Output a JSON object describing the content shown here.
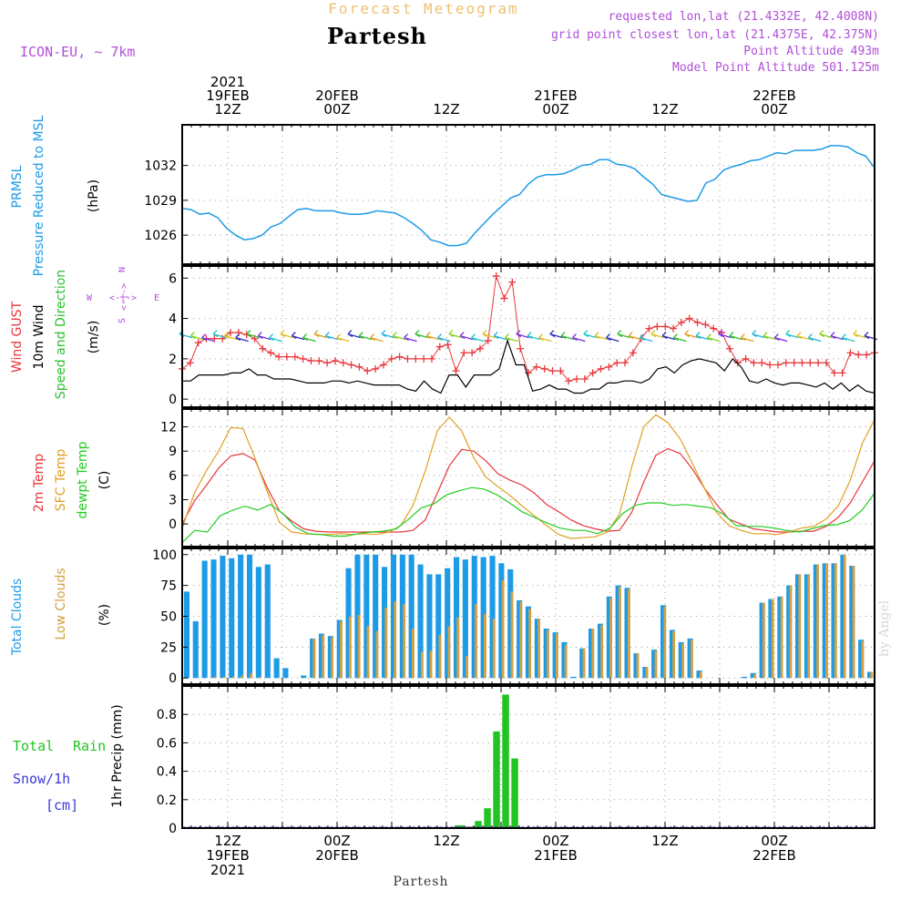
{
  "header": {
    "subtitle": "Forecast Meteogram",
    "title": "Partesh",
    "model": "ICON-EU, ~ 7km",
    "requested": "requested lon,lat (21.4332E, 42.4008N)",
    "closest": "grid point closest lon,lat (21.4375E, 42.375N)",
    "point_alt": "Point Altitude 493m",
    "model_alt": "Model Point Altitude 501.125m",
    "footer_name": "Partesh",
    "watermark": "by Angel"
  },
  "colors": {
    "pressure": "#1e9be6",
    "gust": "#e8373c",
    "wind": "#000000",
    "dirlabel": "#2fbf2f",
    "temp": "#e8373c",
    "sfc": "#e0a020",
    "dew": "#22cc22",
    "total_clouds": "#1e9be6",
    "low_clouds": "#d4a040",
    "rain": "#22c422",
    "snow": "#3a3ad8",
    "purple": "#b04fd8",
    "orange_title": "#f0c070"
  },
  "time_axis": {
    "top_labels": [
      {
        "h": 12,
        "lines": [
          "2021",
          "19FEB",
          "12Z"
        ]
      },
      {
        "h": 24,
        "lines": [
          "20FEB",
          "00Z"
        ]
      },
      {
        "h": 36,
        "lines": [
          "12Z"
        ]
      },
      {
        "h": 48,
        "lines": [
          "21FEB",
          "00Z"
        ]
      },
      {
        "h": 60,
        "lines": [
          "12Z"
        ]
      },
      {
        "h": 72,
        "lines": [
          "22FEB",
          "00Z"
        ]
      }
    ],
    "bottom_labels": [
      {
        "h": 12,
        "lines": [
          "12Z",
          "19FEB",
          "2021"
        ]
      },
      {
        "h": 24,
        "lines": [
          "00Z",
          "20FEB"
        ]
      },
      {
        "h": 36,
        "lines": [
          "12Z"
        ]
      },
      {
        "h": 48,
        "lines": [
          "00Z",
          "21FEB"
        ]
      },
      {
        "h": 60,
        "lines": [
          "12Z"
        ]
      },
      {
        "h": 72,
        "lines": [
          "00Z",
          "22FEB"
        ]
      }
    ],
    "start_hour": 7,
    "end_hour": 83
  },
  "panel_labels": {
    "pressure": [
      "PRMSL",
      "Pressure Reduced to MSL",
      "(hPa)"
    ],
    "wind": [
      "Wind GUST",
      "10m Wind",
      "Speed and Direction",
      "(m/s)"
    ],
    "compass": {
      "n": "N",
      "s": "S",
      "w": "W",
      "e": "E",
      "arrow": "<-|->"
    },
    "temp": [
      "2m Temp",
      "SFC Temp",
      "dewpt Temp",
      "(C)"
    ],
    "clouds": [
      "Total Clouds",
      "Low Clouds",
      "(%)"
    ],
    "precip": [
      "Total",
      "Rain",
      "Snow/1h",
      "[cm]",
      "1hr Precip (mm)"
    ]
  },
  "chart_data": [
    {
      "type": "line",
      "title": "PRMSL Pressure Reduced to MSL",
      "ylabel": "(hPa)",
      "ylim": [
        1023.5,
        1035.5
      ],
      "yticks": [
        1026,
        1029,
        1032
      ],
      "series": [
        {
          "name": "PRMSL",
          "values": [
            1028.3,
            1028.2,
            1027.8,
            1027.9,
            1027.5,
            1026.6,
            1026.0,
            1025.6,
            1025.7,
            1026.0,
            1026.7,
            1027.0,
            1027.6,
            1028.2,
            1028.3,
            1028.1,
            1028.1,
            1028.1,
            1027.9,
            1027.8,
            1027.8,
            1027.9,
            1028.1,
            1028.0,
            1027.9,
            1027.5,
            1027.0,
            1026.4,
            1025.6,
            1025.4,
            1025.1,
            1025.1,
            1025.3,
            1026.2,
            1027.0,
            1027.8,
            1028.5,
            1029.2,
            1029.5,
            1030.4,
            1031.0,
            1031.2,
            1031.2,
            1031.3,
            1031.6,
            1032.0,
            1032.1,
            1032.5,
            1032.5,
            1032.1,
            1032.0,
            1031.7,
            1031.0,
            1030.4,
            1029.5,
            1029.3,
            1029.1,
            1028.9,
            1029.0,
            1030.5,
            1030.8,
            1031.6,
            1031.9,
            1032.1,
            1032.4,
            1032.5,
            1032.8,
            1033.1,
            1033.0,
            1033.3,
            1033.3,
            1033.3,
            1033.4,
            1033.7,
            1033.7,
            1033.6,
            1033.1,
            1032.8,
            1031.8
          ]
        }
      ]
    },
    {
      "type": "line",
      "title": "Wind GUST / 10m Wind Speed and Direction",
      "ylabel": "(m/s)",
      "ylim": [
        -0.4,
        6.6
      ],
      "yticks": [
        0,
        2,
        4,
        6
      ],
      "series": [
        {
          "name": "Wind GUST",
          "values": [
            1.5,
            1.8,
            2.8,
            3.0,
            3.0,
            3.0,
            3.3,
            3.3,
            3.2,
            3.0,
            2.5,
            2.3,
            2.1,
            2.1,
            2.1,
            2.0,
            1.9,
            1.9,
            1.8,
            1.9,
            1.8,
            1.7,
            1.6,
            1.4,
            1.5,
            1.7,
            2.0,
            2.1,
            2.0,
            2.0,
            2.0,
            2.0,
            2.6,
            2.7,
            1.4,
            2.3,
            2.3,
            2.5,
            2.9,
            6.1,
            5.0,
            5.8,
            2.5,
            1.3,
            1.6,
            1.5,
            1.4,
            1.4,
            0.9,
            1.0,
            1.0,
            1.3,
            1.5,
            1.6,
            1.8,
            1.8,
            2.3,
            3.0,
            3.5,
            3.6,
            3.6,
            3.5,
            3.8,
            4.0,
            3.8,
            3.7,
            3.5,
            3.3,
            2.5,
            1.8,
            2.0,
            1.8,
            1.8,
            1.7,
            1.7,
            1.8,
            1.8,
            1.8,
            1.8,
            1.8,
            1.8,
            1.3,
            1.3,
            2.3,
            2.2,
            2.2,
            2.3
          ]
        },
        {
          "name": "10m Wind",
          "values": [
            0.9,
            0.9,
            1.2,
            1.2,
            1.2,
            1.2,
            1.3,
            1.3,
            1.5,
            1.2,
            1.2,
            1.0,
            1.0,
            1.0,
            0.9,
            0.8,
            0.8,
            0.8,
            0.9,
            0.9,
            0.8,
            0.9,
            0.8,
            0.7,
            0.7,
            0.7,
            0.7,
            0.5,
            0.4,
            0.9,
            0.5,
            0.3,
            1.2,
            1.2,
            0.6,
            1.2,
            1.2,
            1.2,
            1.5,
            2.9,
            1.7,
            1.7,
            0.4,
            0.5,
            0.7,
            0.5,
            0.5,
            0.3,
            0.3,
            0.5,
            0.5,
            0.8,
            0.8,
            0.9,
            0.9,
            0.8,
            1.0,
            1.5,
            1.6,
            1.3,
            1.7,
            1.9,
            2.0,
            1.9,
            1.8,
            1.4,
            2.0,
            1.6,
            0.9,
            0.8,
            1.0,
            0.8,
            0.7,
            0.8,
            0.8,
            0.7,
            0.6,
            0.8,
            0.5,
            0.8,
            0.4,
            0.7,
            0.4,
            0.3
          ]
        }
      ]
    },
    {
      "type": "line",
      "title": "2m Temp / SFC Temp / dewpt Temp",
      "ylabel": "(C)",
      "ylim": [
        -2.8,
        14.2
      ],
      "yticks": [
        0,
        3,
        6,
        9,
        12
      ],
      "series": [
        {
          "name": "2m Temp",
          "values": [
            0.0,
            2.8,
            4.8,
            6.9,
            8.4,
            8.7,
            7.9,
            4.5,
            1.6,
            0.4,
            -0.6,
            -0.9,
            -1.0,
            -1.0,
            -1.0,
            -1.0,
            -1.0,
            -1.0,
            -1.0,
            -0.8,
            0.5,
            3.8,
            7.2,
            9.2,
            9.0,
            7.8,
            6.2,
            5.4,
            4.8,
            3.8,
            2.4,
            1.5,
            0.5,
            -0.2,
            -0.6,
            -0.9,
            -0.8,
            1.4,
            5.2,
            8.5,
            9.3,
            8.7,
            6.8,
            4.4,
            2.4,
            0.6,
            0.0,
            -0.6,
            -0.8,
            -1.0,
            -1.0,
            -0.9,
            -0.9,
            -0.3,
            0.8,
            2.6,
            5.2,
            7.8
          ]
        },
        {
          "name": "SFC Temp",
          "values": [
            -0.5,
            3.8,
            6.6,
            9.0,
            11.9,
            11.8,
            8.1,
            4.0,
            0.2,
            -1.0,
            -1.2,
            -1.3,
            -1.3,
            -1.2,
            -1.3,
            -1.2,
            -1.3,
            -1.0,
            -0.2,
            2.3,
            6.5,
            11.5,
            13.2,
            11.5,
            8.2,
            5.8,
            4.6,
            3.5,
            2.2,
            1.0,
            -0.2,
            -1.3,
            -1.8,
            -1.7,
            -1.6,
            -1.0,
            1.2,
            7.0,
            12.0,
            13.5,
            12.5,
            10.5,
            7.5,
            4.4,
            1.4,
            -0.2,
            -0.8,
            -1.2,
            -1.2,
            -1.3,
            -1.0,
            -0.5,
            -0.3,
            0.6,
            2.2,
            5.4,
            10.0,
            12.9
          ]
        },
        {
          "name": "dewpt Temp",
          "values": [
            -2.3,
            -0.8,
            -1.0,
            1.0,
            1.7,
            2.2,
            1.7,
            2.4,
            1.3,
            -0.4,
            -1.2,
            -1.3,
            -1.5,
            -1.5,
            -1.2,
            -1.0,
            -0.9,
            -0.6,
            0.6,
            2.0,
            2.5,
            3.6,
            4.1,
            4.5,
            4.3,
            3.6,
            2.6,
            1.5,
            0.8,
            0.1,
            -0.5,
            -0.8,
            -0.8,
            -1.2,
            -0.5,
            1.3,
            2.3,
            2.6,
            2.6,
            2.3,
            2.4,
            2.2,
            2.0,
            1.2,
            -0.2,
            -0.3,
            -0.3,
            -0.5,
            -0.8,
            -1.0,
            -0.6,
            -0.2,
            -0.1,
            0.4,
            1.7,
            3.8
          ]
        }
      ]
    },
    {
      "type": "bar",
      "title": "Total Clouds / Low Clouds",
      "ylabel": "(%)",
      "ylim": [
        -5,
        105
      ],
      "yticks": [
        0,
        25,
        50,
        75,
        100
      ],
      "series": [
        {
          "name": "Total Clouds",
          "values": [
            70,
            46,
            95,
            96,
            99,
            97,
            100,
            100,
            90,
            92,
            16,
            8,
            0,
            2,
            32,
            36,
            34,
            47,
            89,
            100,
            100,
            100,
            90,
            100,
            100,
            100,
            92,
            84,
            84,
            89,
            98,
            96,
            99,
            98,
            99,
            93,
            88,
            63,
            58,
            48,
            40,
            37,
            29,
            1,
            24,
            40,
            44,
            66,
            75,
            73,
            20,
            9,
            23,
            59,
            39,
            29,
            32,
            6,
            0,
            0,
            0,
            0,
            1,
            4,
            61,
            64,
            66,
            75,
            84,
            84,
            92,
            93,
            93,
            100,
            91,
            31,
            5
          ]
        },
        {
          "name": "Low Clouds",
          "values": [
            0,
            0,
            0,
            1,
            1,
            1,
            2,
            4,
            1,
            0,
            0,
            0,
            0,
            0,
            32,
            35,
            33,
            46,
            50,
            51,
            42,
            38,
            57,
            62,
            60,
            40,
            21,
            22,
            35,
            42,
            49,
            18,
            60,
            52,
            48,
            79,
            70,
            62,
            56,
            48,
            39,
            36,
            27,
            0,
            24,
            40,
            43,
            65,
            74,
            72,
            20,
            9,
            22,
            58,
            38,
            28,
            31,
            5,
            0,
            0,
            0,
            0,
            0,
            3,
            61,
            64,
            66,
            75,
            84,
            84,
            92,
            93,
            93,
            100,
            91,
            30,
            5
          ]
        }
      ]
    },
    {
      "type": "bar",
      "title": "1hr Precip",
      "ylabel": "1hr Precip (mm)",
      "ylim": [
        0,
        1.0
      ],
      "yticks": [
        0,
        0.2,
        0.4,
        0.6,
        0.8
      ],
      "series": [
        {
          "name": "Total Rain",
          "values": [
            0.02,
            0.01,
            0.05,
            0.14,
            0.68,
            0.94,
            0.49
          ]
        }
      ],
      "x_hours": [
        38,
        39,
        40,
        41,
        42,
        43,
        44
      ]
    }
  ]
}
